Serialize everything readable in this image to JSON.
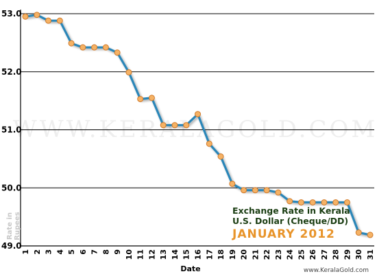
{
  "chart_data": {
    "type": "line",
    "title_line1": "Exchange Rate in Kerala",
    "title_line2": "U.S. Dollar (Cheque/DD)",
    "title_line3": "JANUARY 2012",
    "xlabel": "Date",
    "ylabel_line1": "Rate in",
    "ylabel_line2": "Rupees",
    "watermark": "WWW.KERALAGOLD.COM",
    "footer": "www.KeralaGold.com",
    "ylim": [
      49.0,
      53.0
    ],
    "y_ticks": [
      "53.0",
      "52.0",
      "51.0",
      "50.0",
      "49.0"
    ],
    "x": [
      "1",
      "2",
      "3",
      "4",
      "5",
      "6",
      "7",
      "8",
      "9",
      "10",
      "11",
      "12",
      "13",
      "14",
      "15",
      "16",
      "17",
      "18",
      "19",
      "20",
      "21",
      "22",
      "23",
      "24",
      "25",
      "26",
      "27",
      "28",
      "29",
      "30",
      "31"
    ],
    "values": [
      52.95,
      52.98,
      52.88,
      52.88,
      52.49,
      52.42,
      52.42,
      52.42,
      52.33,
      51.99,
      51.53,
      51.55,
      51.08,
      51.08,
      51.08,
      51.27,
      50.76,
      50.54,
      50.07,
      49.96,
      49.96,
      49.96,
      49.92,
      49.77,
      49.75,
      49.75,
      49.75,
      49.75,
      49.75,
      49.23,
      49.19
    ],
    "grid": true,
    "line_color": "#2b86b8",
    "marker_color": "#f5b265",
    "marker_stroke": "#d07a2a",
    "axis_color": "#000000"
  }
}
